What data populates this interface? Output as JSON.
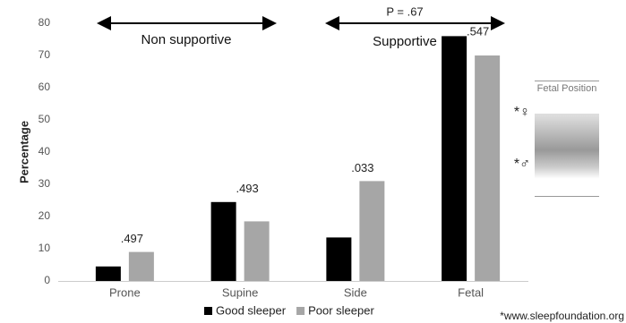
{
  "chart_data": {
    "type": "bar",
    "y_label": "Percentage",
    "categories": [
      "Prone",
      "Supine",
      "Side",
      "Fetal"
    ],
    "series": [
      {
        "name": "Good sleeper",
        "color": "#000000",
        "values": [
          4.5,
          24.5,
          13.5,
          76
        ]
      },
      {
        "name": "Poor sleeper",
        "color": "#a6a6a6",
        "values": [
          9,
          18.5,
          31,
          70
        ]
      }
    ],
    "pair_labels": [
      ".497",
      ".493",
      ".033",
      ".547"
    ],
    "ylim": [
      0,
      80
    ],
    "yticks": [
      0,
      10,
      20,
      30,
      40,
      50,
      60,
      70,
      80
    ],
    "grid": false,
    "group_labels": [
      "Non supportive",
      "Supportive"
    ],
    "group_p": "P = .67",
    "image_caption": "Fetal Position",
    "symbols": [
      "*♀",
      "*♂"
    ],
    "source": "*www.sleepfoundation.org"
  }
}
